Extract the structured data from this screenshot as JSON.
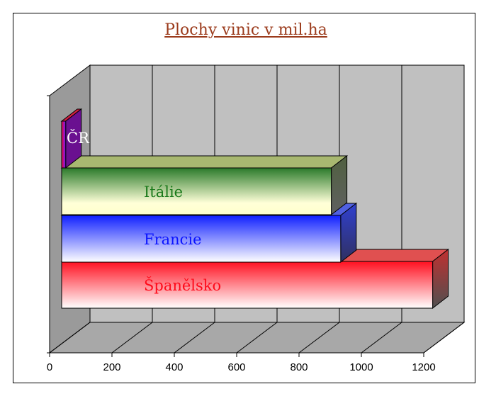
{
  "chart_data": {
    "type": "bar",
    "orientation": "horizontal",
    "three_d": true,
    "title": "Plochy vinic v mil.ha",
    "categories": [
      "Španělsko",
      "Francie",
      "Itálie",
      "ČR"
    ],
    "values": [
      1190,
      895,
      865,
      13
    ],
    "xlim": [
      0,
      1200
    ],
    "xticks": [
      "0",
      "200",
      "400",
      "600",
      "800",
      "1000",
      "1200"
    ],
    "grid": true,
    "legend": "none",
    "colors": {
      "Španělsko": "#ff0a1a",
      "Francie": "#0a14ff",
      "Itálie": "#1b7a1b",
      "ČR": "#ff0040",
      "ČR_label": "#ffffff",
      "wall": "#c0c0c0",
      "floor": "#a8a8a8"
    }
  }
}
